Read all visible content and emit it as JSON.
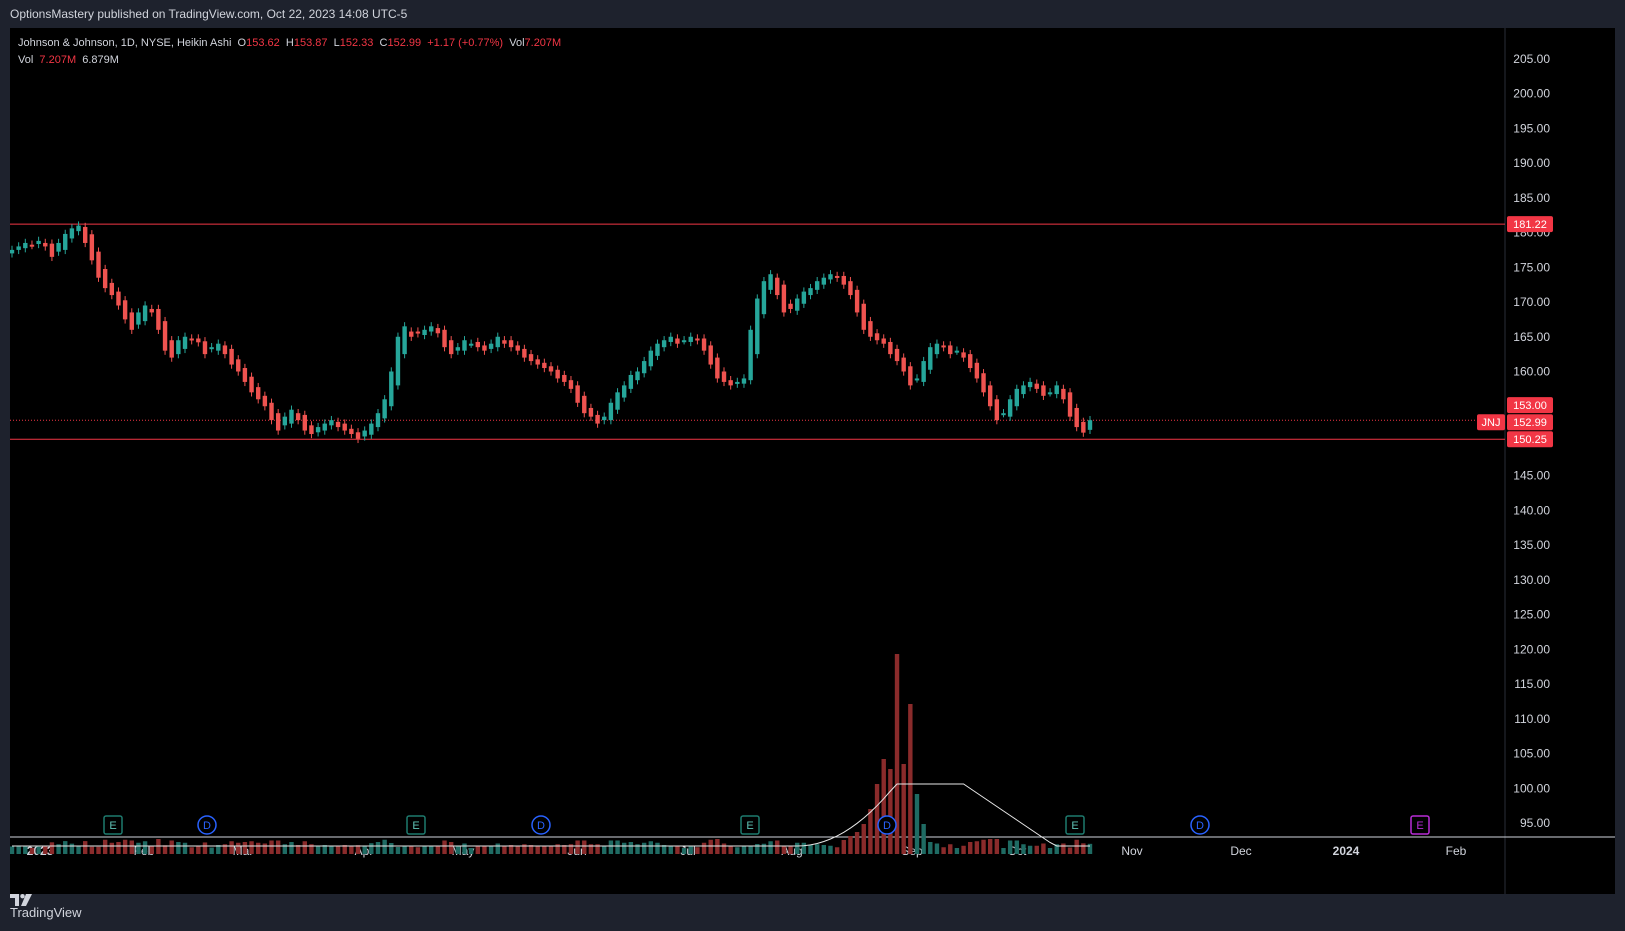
{
  "header": {
    "publisher_line": "OptionsMastery published on TradingView.com, Oct 22, 2023 14:08 UTC-5"
  },
  "legend": {
    "symbol_line": "Johnson & Johnson, 1D, NYSE, Heikin Ashi",
    "o_label": "O",
    "o_value": "153.62",
    "h_label": "H",
    "h_value": "153.87",
    "l_label": "L",
    "l_value": "152.33",
    "c_label": "C",
    "c_value": "152.99",
    "change": "+1.17 (+0.77%)",
    "vol_label": "Vol",
    "vol_value": "7.207M",
    "vol2_label": "Vol",
    "vol2_value": "7.207M",
    "vol2_ma": "6.879M"
  },
  "footer": {
    "brand": "TradingView"
  },
  "colors": {
    "up": "#26a69a",
    "down": "#ef5350",
    "vol_up": "#1f6b63",
    "vol_down": "#8a2b2b",
    "level_line": "#f23645",
    "axis_text": "#d1d4dc",
    "background": "#000000",
    "panel": "#1e222d",
    "dividend_badge": "#2962ff",
    "earnings_badge": "#1e7a6e",
    "future_earnings_badge": "#b82cd6"
  },
  "chart_data": {
    "type": "candlestick",
    "style": "Heikin Ashi",
    "symbol": "JNJ",
    "interval": "1D",
    "y_axis": {
      "min": 93,
      "max": 208,
      "ticks": [
        95,
        100,
        105,
        110,
        115,
        120,
        125,
        130,
        135,
        140,
        145,
        150,
        155,
        160,
        165,
        170,
        175,
        180,
        185,
        190,
        195,
        200,
        205
      ]
    },
    "x_labels": [
      "2023",
      "Feb",
      "Mar",
      "Apr",
      "May",
      "Jun",
      "Jul",
      "Aug",
      "Sep",
      "Oct",
      "Nov",
      "Dec",
      "2024",
      "Feb"
    ],
    "horizontal_levels": [
      {
        "price": 181.22,
        "label": "181.22"
      },
      {
        "price": 150.25,
        "label": "150.25"
      }
    ],
    "price_labels": [
      {
        "price": 153.0,
        "label": "153.00"
      },
      {
        "price": 152.99,
        "label": "152.99",
        "tag": "JNJ"
      }
    ],
    "last_price": 152.99,
    "close_series": [
      177.5,
      178.0,
      178.5,
      178.2,
      178.8,
      178.0,
      176.5,
      178.5,
      179.8,
      180.6,
      181.0,
      178.5,
      176.0,
      173.5,
      172.0,
      171.0,
      169.5,
      167.5,
      166.0,
      168.5,
      169.5,
      168.5,
      166.0,
      163.0,
      162.0,
      164.5,
      165.0,
      164.5,
      164.2,
      162.5,
      163.5,
      164.0,
      162.5,
      161.0,
      160.0,
      158.5,
      157.0,
      156.0,
      155.0,
      153.0,
      151.5,
      153.5,
      154.5,
      153.0,
      151.5,
      151.0,
      152.0,
      152.5,
      153.0,
      152.0,
      151.5,
      151.0,
      150.3,
      151.5,
      152.5,
      154.0,
      156.0,
      160.0,
      165.0,
      166.5,
      165.0,
      165.5,
      166.0,
      166.5,
      165.5,
      163.5,
      162.5,
      163.5,
      164.5,
      164.0,
      163.5,
      163.0,
      164.0,
      165.0,
      164.0,
      163.5,
      163.0,
      162.0,
      161.5,
      161.0,
      160.5,
      160.0,
      159.0,
      158.5,
      157.5,
      155.5,
      154.0,
      153.5,
      152.5,
      153.5,
      155.5,
      157.0,
      158.0,
      159.5,
      160.0,
      161.5,
      163.0,
      164.0,
      164.5,
      165.0,
      164.0,
      164.5,
      165.0,
      164.5,
      163.0,
      161.0,
      159.0,
      158.5,
      158.0,
      158.5,
      159.0,
      166.0,
      170.5,
      173.0,
      174.0,
      171.0,
      168.5,
      169.0,
      170.5,
      171.5,
      172.0,
      173.0,
      173.5,
      174.0,
      173.5,
      172.5,
      171.0,
      168.5,
      166.0,
      165.0,
      164.5,
      164.0,
      162.5,
      161.5,
      160.0,
      158.0,
      159.0,
      161.5,
      163.5,
      164.0,
      163.5,
      162.5,
      163.0,
      162.0,
      160.5,
      159.0,
      157.0,
      155.0,
      153.0,
      154.0,
      156.0,
      157.5,
      158.0,
      158.5,
      157.5,
      156.5,
      157.0,
      158.0,
      156.0,
      153.5,
      152.0,
      151.2,
      152.99
    ],
    "volume_axis_label": "Vol",
    "volume_ma_value": "6.879M",
    "events": [
      {
        "type": "E",
        "label": "E"
      },
      {
        "type": "D",
        "label": "D"
      },
      {
        "type": "E",
        "label": "E"
      },
      {
        "type": "D",
        "label": "D"
      },
      {
        "type": "E",
        "label": "E"
      },
      {
        "type": "D",
        "label": "D"
      },
      {
        "type": "E",
        "label": "E"
      },
      {
        "type": "D",
        "label": "D"
      },
      {
        "type": "E",
        "label": "E",
        "future": true
      }
    ]
  }
}
